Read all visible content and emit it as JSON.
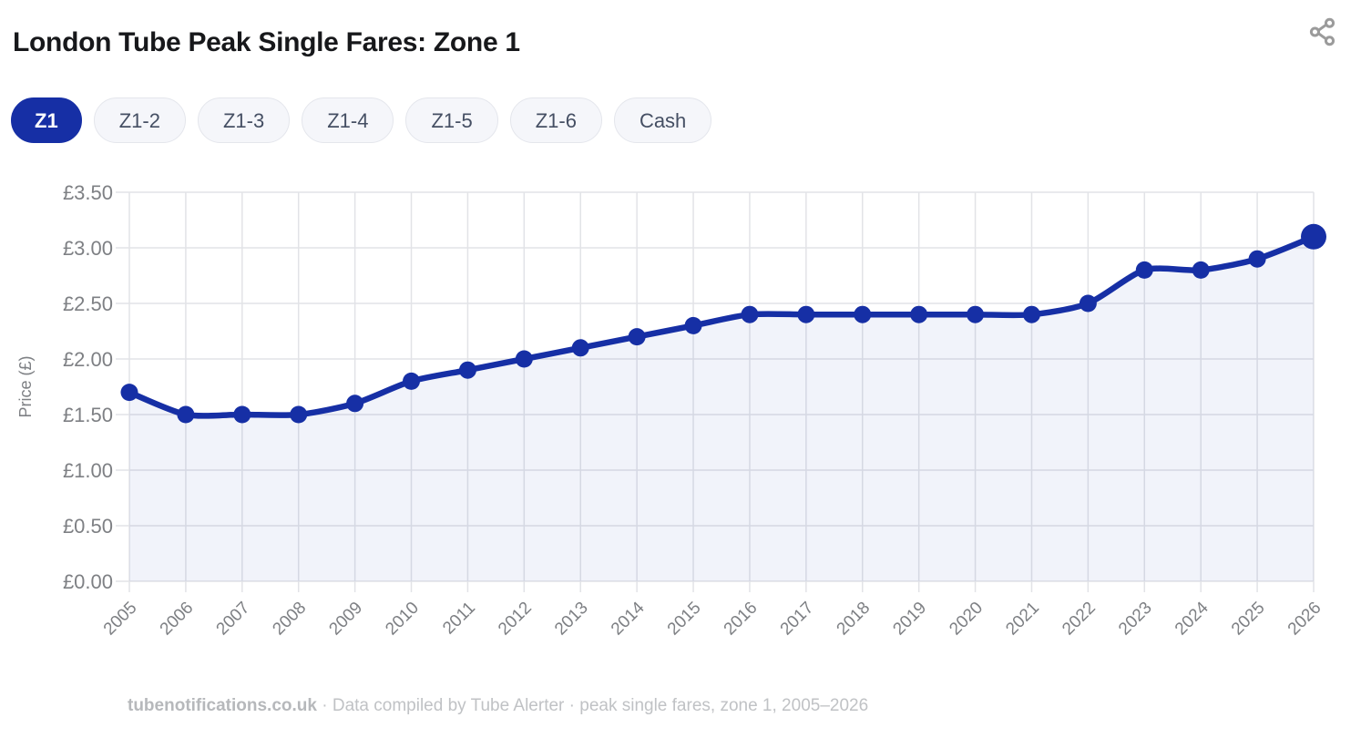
{
  "header": {
    "title": "London Tube Peak Single Fares: Zone 1",
    "share_icon": "share-nodes"
  },
  "tabs": {
    "active": "Z1",
    "items": [
      "Z1",
      "Z1-2",
      "Z1-3",
      "Z1-4",
      "Z1-5",
      "Z1-6",
      "Cash"
    ]
  },
  "chart_data": {
    "type": "area",
    "title": "London Tube Peak Single Fares: Zone 1",
    "x": [
      "2005",
      "2006",
      "2007",
      "2008",
      "2009",
      "2010",
      "2011",
      "2012",
      "2013",
      "2014",
      "2015",
      "2016",
      "2017",
      "2018",
      "2019",
      "2020",
      "2021",
      "2022",
      "2023",
      "2024",
      "2025",
      "2026"
    ],
    "series": [
      {
        "name": "Zone 1 peak single fare",
        "values": [
          1.7,
          1.5,
          1.5,
          1.5,
          1.6,
          1.8,
          1.9,
          2.0,
          2.1,
          2.2,
          2.3,
          2.4,
          2.4,
          2.4,
          2.4,
          2.4,
          2.4,
          2.5,
          2.8,
          2.8,
          2.9,
          3.1
        ]
      }
    ],
    "xlabel": "",
    "ylabel": "Price (£)",
    "ylim": [
      0,
      3.5
    ],
    "ytick_step": 0.5,
    "ytick_labels": [
      "£0.00",
      "£0.50",
      "£1.00",
      "£1.50",
      "£2.00",
      "£2.50",
      "£3.00",
      "£3.50"
    ],
    "grid": true,
    "legend": "none",
    "line_color": "#162fa5",
    "area_fill": "rgba(22,47,165,0.06)",
    "grid_color": "#e2e3e7",
    "axis_text_color": "#7e8084"
  },
  "footer": {
    "site": "tubenotifications.co.uk",
    "sep": "·",
    "note": "Data compiled by Tube Alerter · peak single fares, zone 1, 2005–2026"
  }
}
